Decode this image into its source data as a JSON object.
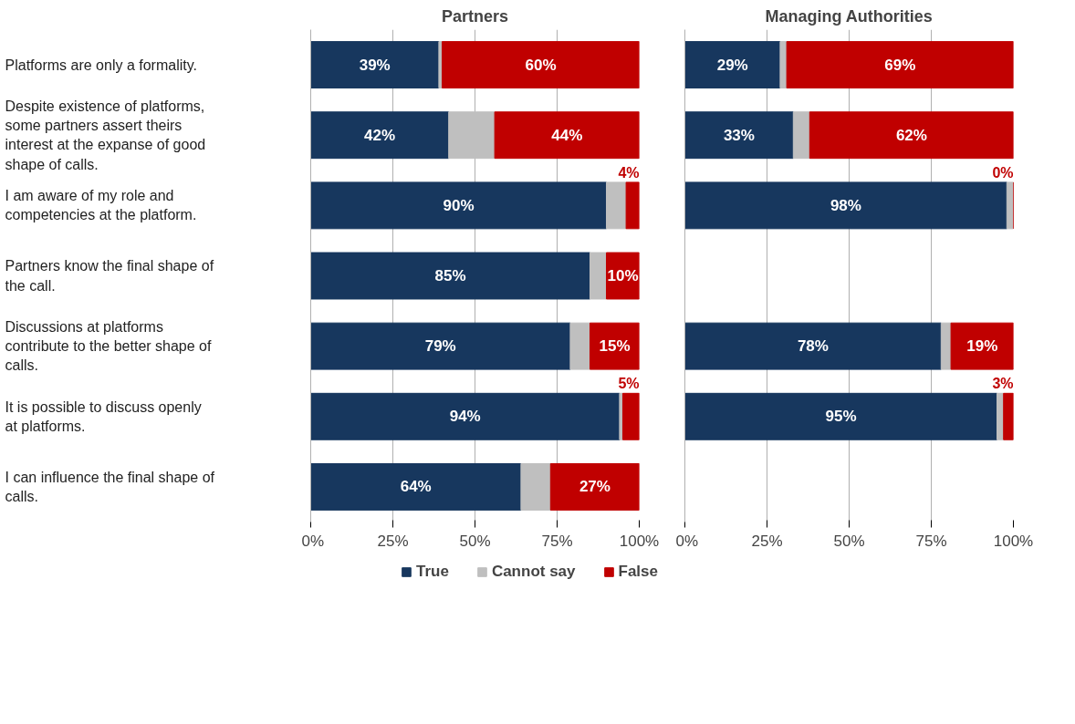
{
  "chart_data": [
    {
      "type": "bar",
      "orientation": "horizontal",
      "stacked": true,
      "title": "Partners",
      "categories": [
        "Platforms are only a formality.",
        "Despite existence of platforms, some partners assert theirs interest at the expanse of good shape of calls.",
        "I am aware of my role and competencies at the platform.",
        "Partners know the final shape of the call.",
        "Discussions at platforms contribute to the better shape of calls.",
        "It is possible to discuss openly at platforms.",
        "I can influence the final shape of calls."
      ],
      "series": [
        {
          "name": "True",
          "color": "#17375e",
          "values": [
            39,
            42,
            90,
            85,
            79,
            94,
            64
          ],
          "value_labels": [
            "39%",
            "42%",
            "90%",
            "85%",
            "79%",
            "94%",
            "64%"
          ]
        },
        {
          "name": "Cannot say",
          "color": "#bfbfbf",
          "values": [
            1,
            14,
            6,
            5,
            6,
            1,
            9
          ]
        },
        {
          "name": "False",
          "color": "#c00000",
          "values": [
            60,
            44,
            4,
            10,
            15,
            5,
            27
          ],
          "value_labels": [
            "60%",
            "44%",
            "4%",
            "10%",
            "15%",
            "5%",
            "27%"
          ]
        }
      ],
      "xlim": [
        0,
        100
      ],
      "xticks": [
        {
          "value": 0,
          "label": "0%"
        },
        {
          "value": 25,
          "label": "25%"
        },
        {
          "value": 50,
          "label": "50%"
        },
        {
          "value": 75,
          "label": "75%"
        },
        {
          "value": 100,
          "label": "100%"
        }
      ],
      "grid": "x",
      "legend": "bottom"
    },
    {
      "type": "bar",
      "orientation": "horizontal",
      "stacked": true,
      "title": "Managing Authorities",
      "categories": [
        "Platforms are only a formality.",
        "Despite existence of platforms, some partners assert theirs interest at the expanse of good shape of calls.",
        "I am aware of my role and competencies at the platform.",
        "Partners know the final shape of the call.",
        "Discussions at platforms contribute to the better shape of calls.",
        "It is possible to discuss openly at platforms.",
        "I can influence the final shape of calls."
      ],
      "series": [
        {
          "color": "#17375e",
          "values": [
            29,
            33,
            98,
            null,
            78,
            95,
            null
          ],
          "value_labels": [
            "29%",
            "33%",
            "98%",
            null,
            "78%",
            "95%",
            null
          ]
        },
        {
          "color": "#bfbfbf",
          "values": [
            2,
            5,
            2,
            null,
            3,
            2,
            null
          ]
        },
        {
          "color": "#c00000",
          "values": [
            69,
            62,
            0,
            null,
            19,
            3,
            null
          ],
          "value_labels": [
            "69%",
            "62%",
            "0%",
            null,
            "19%",
            "3%",
            null
          ]
        }
      ],
      "xlim": [
        0,
        100
      ],
      "xticks": [
        {
          "value": 0,
          "label": "0%"
        },
        {
          "value": 25,
          "label": "25%"
        },
        {
          "value": 50,
          "label": "50%"
        },
        {
          "value": 75,
          "label": "75%"
        },
        {
          "value": 100,
          "label": "100%"
        }
      ],
      "grid": "x",
      "tick_labels": "x"
    }
  ]
}
